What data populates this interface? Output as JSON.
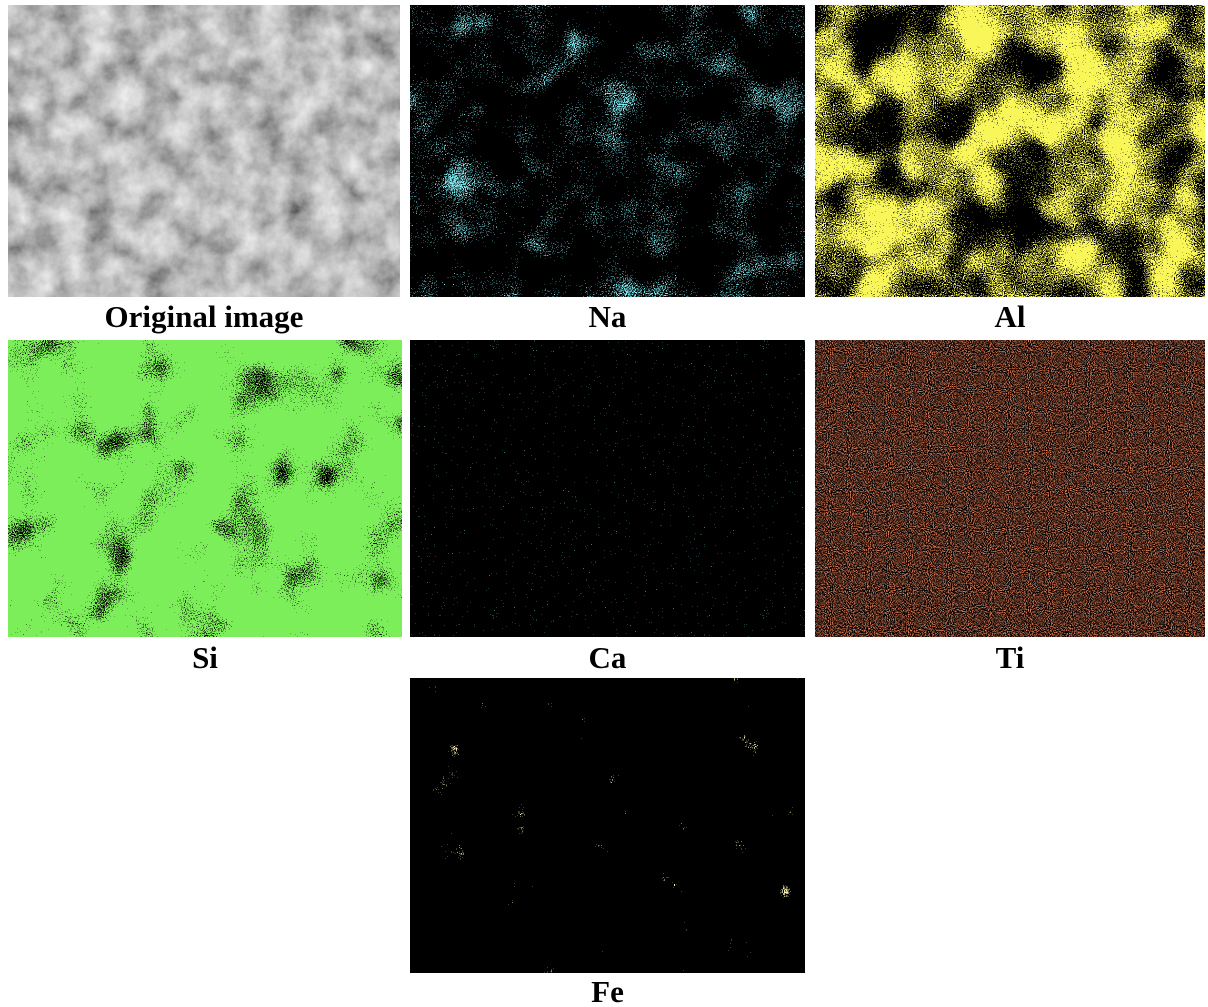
{
  "panels": [
    {
      "label": "Original image"
    },
    {
      "label": "Na"
    },
    {
      "label": "Al"
    },
    {
      "label": "Si"
    },
    {
      "label": "Ca"
    },
    {
      "label": "Ti"
    },
    {
      "label": "Fe"
    }
  ]
}
